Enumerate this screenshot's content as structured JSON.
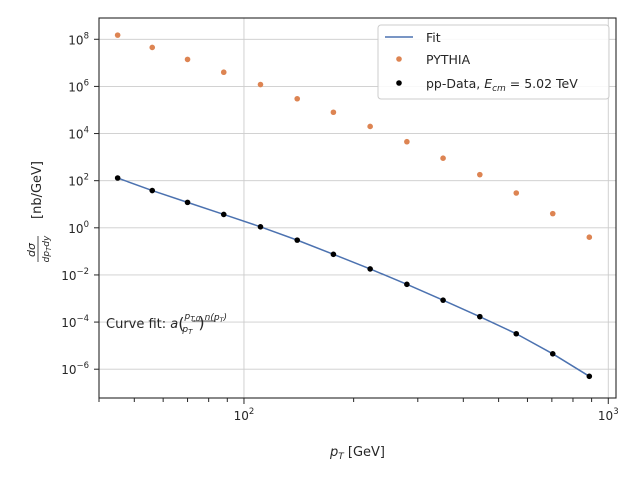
{
  "chart_data": {
    "type": "scatter",
    "x_scale": "log",
    "y_scale": "log",
    "xlim": [
      40,
      1050
    ],
    "ylim": [
      6e-08,
      800000000.0
    ],
    "xlabel": "p_T [GeV]",
    "ylabel": "dσ/dp_T dy [nb/GeV]",
    "x_ticks": [
      {
        "value": 100,
        "base": "10",
        "exp": "2"
      },
      {
        "value": 1000,
        "base": "10",
        "exp": "3"
      }
    ],
    "y_ticks": [
      {
        "value": 1e-06,
        "base": "10",
        "exp": "−6"
      },
      {
        "value": 0.0001,
        "base": "10",
        "exp": "−4"
      },
      {
        "value": 0.01,
        "base": "10",
        "exp": "−2"
      },
      {
        "value": 1,
        "base": "10",
        "exp": "0"
      },
      {
        "value": 100,
        "base": "10",
        "exp": "2"
      },
      {
        "value": 10000.0,
        "base": "10",
        "exp": "4"
      },
      {
        "value": 1000000.0,
        "base": "10",
        "exp": "6"
      },
      {
        "value": 100000000.0,
        "base": "10",
        "exp": "8"
      }
    ],
    "grid": true,
    "legend_position": "top-right",
    "annotation": "Curve fit: a(p_T,0 / p_T)^n(p_T)",
    "series": [
      {
        "name": "Fit",
        "kind": "line",
        "color": "#4c72b0",
        "x": [
          45,
          56,
          70,
          88,
          111,
          140,
          176,
          222,
          280,
          352,
          444,
          559,
          704,
          887
        ],
        "y": [
          130,
          38,
          12,
          3.7,
          1.1,
          0.3,
          0.075,
          0.018,
          0.004,
          0.00085,
          0.00017,
          3.2e-05,
          4.5e-06,
          5e-07
        ]
      },
      {
        "name": "PYTHIA",
        "kind": "scatter",
        "color": "#dd8452",
        "x": [
          45,
          56,
          70,
          88,
          111,
          140,
          176,
          222,
          280,
          352,
          444,
          559,
          704,
          887
        ],
        "y": [
          150000000,
          45000000,
          14000000,
          4000000,
          1200000,
          300000,
          80000,
          20000,
          4500,
          900,
          180,
          30,
          4,
          0.4
        ]
      },
      {
        "name": "pp-Data, E_cm = 5.02 TeV",
        "kind": "scatter",
        "color": "#000000",
        "x": [
          45,
          56,
          70,
          88,
          111,
          140,
          176,
          222,
          280,
          352,
          444,
          559,
          704,
          887
        ],
        "y": [
          130,
          38,
          12,
          3.7,
          1.1,
          0.3,
          0.075,
          0.018,
          0.004,
          0.00085,
          0.00017,
          3.2e-05,
          4.5e-06,
          5e-07
        ]
      }
    ]
  }
}
